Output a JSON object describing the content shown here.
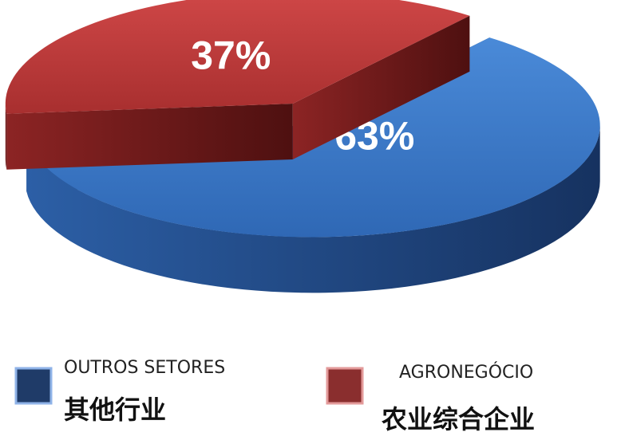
{
  "chart_data": {
    "type": "pie",
    "categories": [
      "OUTROS SETORES",
      "AGRONEGÓCIO"
    ],
    "category_translations": [
      "其他行业",
      "农业综合企业"
    ],
    "values": [
      63,
      37
    ],
    "value_labels": [
      "63%",
      "37%"
    ],
    "colors": [
      "#3b7bd0",
      "#c43c3c"
    ],
    "legend_colors": [
      "#1f3b68",
      "#8a2e2e"
    ]
  }
}
